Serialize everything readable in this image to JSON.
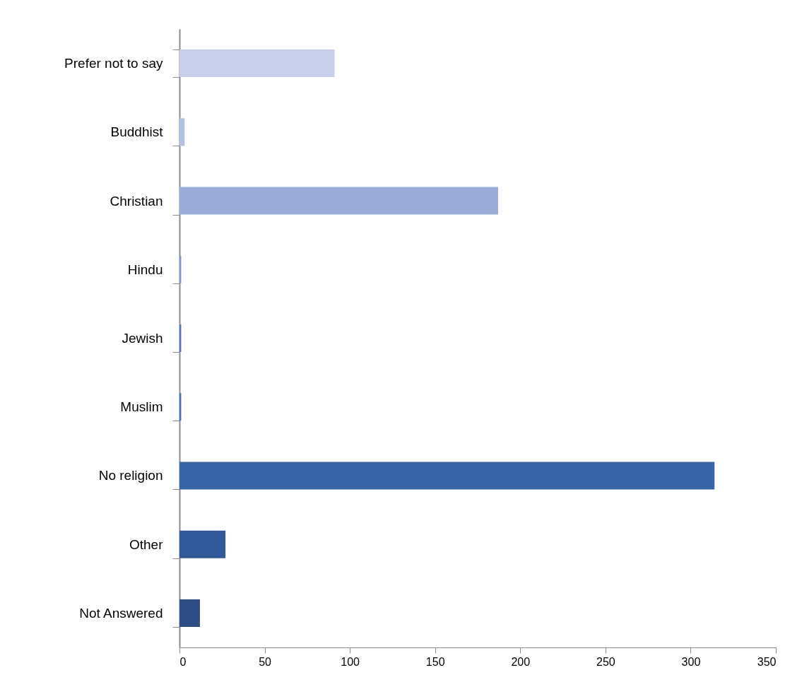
{
  "chart_data": {
    "type": "bar",
    "orientation": "horizontal",
    "categories": [
      "Prefer not to say",
      "Buddhist",
      "Christian",
      "Hindu",
      "Jewish",
      "Muslim",
      "No religion",
      "Other",
      "Not Answered"
    ],
    "values": [
      91,
      3,
      187,
      1,
      1,
      1,
      314,
      27,
      12
    ],
    "colors": [
      "#c9cfea",
      "#b4c0e2",
      "#9aacd7",
      "#7d95d2",
      "#4f75c4",
      "#4670bf",
      "#3a64a8",
      "#30589a",
      "#2e4d87"
    ],
    "xlim": [
      0,
      350
    ],
    "xticks": [
      0,
      50,
      100,
      150,
      200,
      250,
      300,
      350
    ],
    "grid": false
  }
}
